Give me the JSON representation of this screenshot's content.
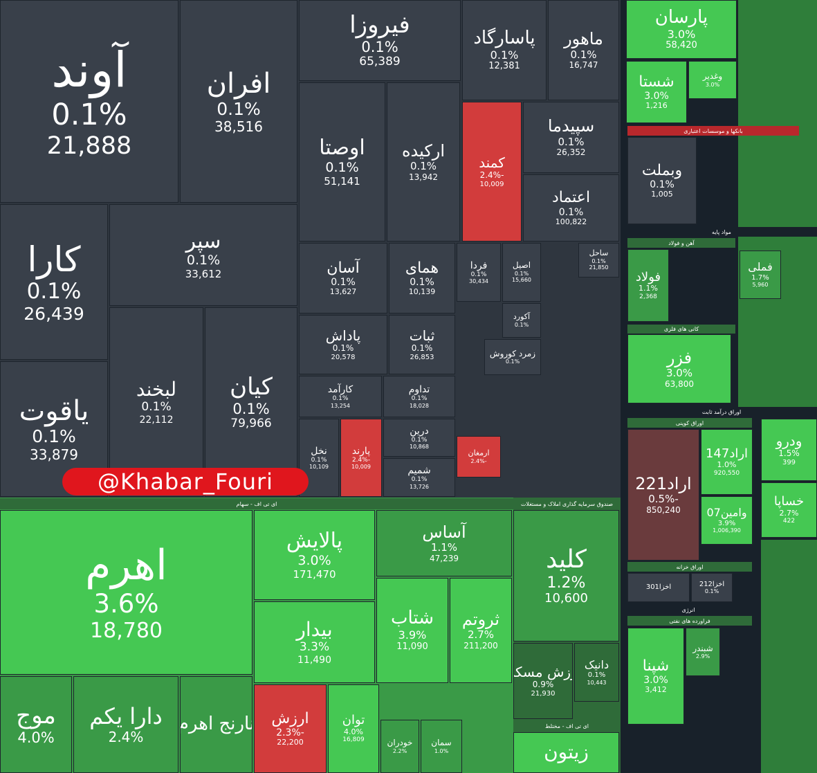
{
  "tiles": [
    {
      "name": "آوند",
      "change": "0.1%",
      "value": "21,888"
    },
    {
      "name": "افران",
      "change": "0.1%",
      "value": "38,516"
    },
    {
      "name": "فیروزا",
      "change": "0.1%",
      "value": "65,389"
    },
    {
      "name": "پاسارگاد",
      "change": "0.1%",
      "value": "12,381"
    },
    {
      "name": "ماهور",
      "change": "0.1%",
      "value": "16,747"
    },
    {
      "name": "اوصتا",
      "change": "0.1%",
      "value": "51,141"
    },
    {
      "name": "ارکیده",
      "change": "0.1%",
      "value": "13,942"
    },
    {
      "name": "کمند",
      "change": "-2.4%",
      "value": "10,009"
    },
    {
      "name": "سپیدما",
      "change": "0.1%",
      "value": "26,352"
    },
    {
      "name": "اعتماد",
      "change": "0.1%",
      "value": "100,822"
    },
    {
      "name": "کارا",
      "change": "0.1%",
      "value": "26,439"
    },
    {
      "name": "سپر",
      "change": "0.1%",
      "value": "33,612"
    },
    {
      "name": "یاقوت",
      "change": "0.1%",
      "value": "33,879"
    },
    {
      "name": "لبخند",
      "change": "0.1%",
      "value": "22,112"
    },
    {
      "name": "کیان",
      "change": "0.1%",
      "value": "79,966"
    },
    {
      "name": "آسان",
      "change": "0.1%",
      "value": "13,627"
    },
    {
      "name": "همای",
      "change": "0.1%",
      "value": "10,139"
    },
    {
      "name": "پاداش",
      "change": "0.1%",
      "value": "20,578"
    },
    {
      "name": "ثبات",
      "change": "0.1%",
      "value": "26,853"
    },
    {
      "name": "کارآمد",
      "change": "0.1%",
      "value": "13,254"
    },
    {
      "name": "تداوم",
      "change": "0.1%",
      "value": "18,028"
    },
    {
      "name": "نخل",
      "change": "0.1%",
      "value": "10,109"
    },
    {
      "name": "پارند",
      "change": "-2.4%",
      "value": "10,009"
    },
    {
      "name": "درین",
      "change": "0.1%",
      "value": "10,868"
    },
    {
      "name": "شمیم",
      "change": "0.1%",
      "value": "13,726"
    },
    {
      "name": "فردا",
      "change": "0.1%",
      "value": "30,434"
    },
    {
      "name": "اصیل",
      "change": "0.1%",
      "value": "15,660"
    },
    {
      "name": "ساحل",
      "change": "0.1%",
      "value": "21,850"
    },
    {
      "name": "آکورد",
      "change": "0.1%"
    },
    {
      "name": "زمرد کوروش",
      "change": "0.1%"
    },
    {
      "name": "ارمغان",
      "change": "-2.4%"
    },
    {
      "name": "اهرم",
      "change": "3.6%",
      "value": "18,780"
    },
    {
      "name": "پالایش",
      "change": "3.0%",
      "value": "171,470"
    },
    {
      "name": "آساس",
      "change": "1.1%",
      "value": "47,239"
    },
    {
      "name": "بیدار",
      "change": "3.3%",
      "value": "11,490"
    },
    {
      "name": "شتاب",
      "change": "3.9%",
      "value": "11,090"
    },
    {
      "name": "ثروتم",
      "change": "2.7%",
      "value": "211,200"
    },
    {
      "name": "موج",
      "change": "4.0%"
    },
    {
      "name": "دارا یکم",
      "change": "2.4%"
    },
    {
      "name": "نارنج اهرم"
    },
    {
      "name": "ارزش",
      "change": "-2.3%",
      "value": "22,200"
    },
    {
      "name": "توان",
      "change": "4.0%",
      "value": "16,809"
    },
    {
      "name": "خودران",
      "change": "2.2%"
    },
    {
      "name": "سمان",
      "change": "1.0%"
    },
    {
      "name": "کلید",
      "change": "1.2%",
      "value": "10,600"
    },
    {
      "name": "ارزش مسکن",
      "change": "0.9%",
      "value": "21,930"
    },
    {
      "name": "دانیک",
      "change": "0.1%",
      "value": "10,443"
    },
    {
      "name": "زیتون"
    },
    {
      "name": "پارسان",
      "change": "3.0%",
      "value": "58,420"
    },
    {
      "name": "شستا",
      "change": "3.0%",
      "value": "1,216"
    },
    {
      "name": "وغدیر",
      "change": "3.0%"
    },
    {
      "name": "وبملت",
      "change": "0.1%",
      "value": "1,005"
    },
    {
      "name": "فولاد",
      "change": "1.1%",
      "value": "2,368"
    },
    {
      "name": "فملی",
      "change": "1.7%",
      "value": "5,960"
    },
    {
      "name": "فزر",
      "change": "3.0%",
      "value": "63,800"
    },
    {
      "name": "اراد221",
      "change": "-0.5%",
      "value": "850,240"
    },
    {
      "name": "اراد147",
      "change": "1.0%",
      "value": "920,550"
    },
    {
      "name": "وامین07",
      "change": "3.9%",
      "value": "1,006,390"
    },
    {
      "name": "اخزا301"
    },
    {
      "name": "اخزا212",
      "change": "0.1%"
    },
    {
      "name": "شپنا",
      "change": "3.0%",
      "value": "3,412"
    },
    {
      "name": "شبندر",
      "change": "2.9%"
    },
    {
      "name": "ودرو",
      "change": "1.5%",
      "value": "399"
    },
    {
      "name": "خساپا",
      "change": "2.7%",
      "value": "422"
    }
  ],
  "headers": [
    "ای تی اف - سهام",
    "صندوق سرمایه گذاری املاک و مستغلات",
    "ای تی اف - مختلط",
    "بانکها و موسسات اعتباری",
    "مواد پایه",
    "آهن و فولاد",
    "کانی های فلزی",
    "اوراق درآمد ثابت",
    "اوراق کوپنی",
    "اوراق خزانه",
    "انرژی",
    "فراورده های نفتی"
  ],
  "watermark": "@Khabar_Fouri"
}
